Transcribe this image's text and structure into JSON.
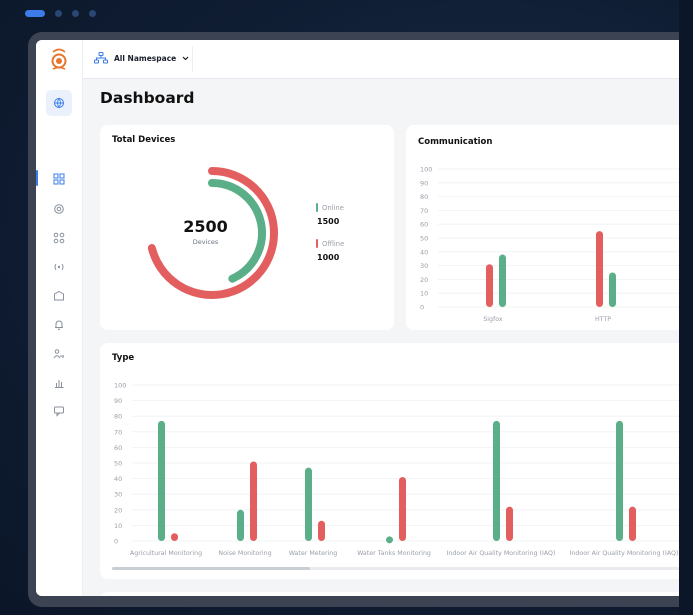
{
  "topbar": {
    "namespace_label": "All Namespace"
  },
  "page": {
    "title": "Dashboard"
  },
  "sidebar": {
    "icons": [
      "globe-icon",
      "grid-icon",
      "gear-icon",
      "nodes-icon",
      "broadcast-icon",
      "box-icon",
      "bell-icon",
      "user-key-icon",
      "bar-chart-icon",
      "message-icon"
    ],
    "active_index": 1
  },
  "total_devices": {
    "title": "Total Devices",
    "total": "2500",
    "total_label": "Devices",
    "legend": [
      {
        "label": "Online",
        "value": "1500",
        "color": "#5aaf88"
      },
      {
        "label": "Offline",
        "value": "1000",
        "color": "#e35f5f"
      }
    ],
    "online_fraction": 0.6,
    "offline_fraction": 0.4
  },
  "communication": {
    "title": "Communication",
    "chart_data": {
      "type": "bar",
      "categories": [
        "Sigfox",
        "HTTP"
      ],
      "series": [
        {
          "values": [
            31,
            55
          ],
          "color": "#e35f5f"
        },
        {
          "values": [
            38,
            25
          ],
          "color": "#5aaf88"
        }
      ],
      "ylim": [
        0,
        100
      ],
      "yticks": [
        "100",
        "90",
        "80",
        "70",
        "60",
        "50",
        "40",
        "30",
        "20",
        "10",
        "0"
      ]
    }
  },
  "type_card": {
    "title": "Type",
    "chart_data": {
      "type": "bar",
      "categories": [
        "Agricultural Monitoring",
        "Noise Monitoring",
        "Water Metering",
        "Water Tanks Monitoring",
        "Indoor Air Quality Monitoring (IAQ)",
        "Indoor Air Quality Monitoring (IAQ)"
      ],
      "series": [
        {
          "values": [
            77,
            20,
            47,
            3,
            77,
            77
          ],
          "color": "#5aaf88"
        },
        {
          "values": [
            5,
            51,
            13,
            41,
            22,
            22
          ],
          "color": "#e35f5f"
        }
      ],
      "ylim": [
        0,
        100
      ],
      "yticks": [
        "100",
        "90",
        "80",
        "70",
        "60",
        "50",
        "40",
        "30",
        "20",
        "10",
        "0"
      ]
    }
  }
}
